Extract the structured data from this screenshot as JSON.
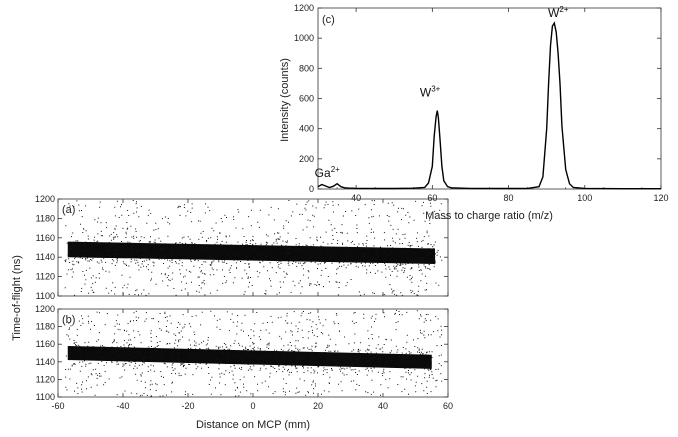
{
  "chart_data": [
    {
      "type": "line",
      "panel_label": "(c)",
      "xlabel": "Mass to charge ratio (m/z)",
      "ylabel": "Intensity (counts)",
      "xlim": [
        30,
        120
      ],
      "ylim": [
        0,
        1200
      ],
      "xticks": [
        "40",
        "60",
        "80",
        "100",
        "120"
      ],
      "yticks": [
        "0",
        "200",
        "400",
        "600",
        "800",
        "1000",
        "1200"
      ],
      "annotations": [
        {
          "base": "Ga",
          "sup": "2+",
          "x": 34,
          "y": 40
        },
        {
          "base": "W",
          "sup": "3+",
          "x": 61,
          "y": 520
        },
        {
          "base": "W",
          "sup": "2+",
          "x": 92,
          "y": 1100
        }
      ],
      "x": [
        30,
        31,
        32,
        33,
        34,
        35,
        36,
        37,
        38,
        39,
        40,
        45,
        50,
        55,
        58,
        59,
        60,
        60.5,
        61,
        61.3,
        61.6,
        62,
        62.5,
        63,
        64,
        65,
        70,
        80,
        85,
        88,
        89,
        90,
        90.5,
        91,
        91.5,
        92,
        92.5,
        93,
        93.5,
        94,
        95,
        96,
        97,
        100,
        110,
        120
      ],
      "y": [
        15,
        30,
        20,
        10,
        18,
        35,
        15,
        8,
        6,
        5,
        4,
        3,
        3,
        5,
        10,
        40,
        150,
        350,
        480,
        520,
        470,
        330,
        150,
        55,
        15,
        8,
        4,
        3,
        4,
        15,
        80,
        400,
        700,
        950,
        1080,
        1100,
        1040,
        900,
        700,
        420,
        130,
        35,
        10,
        4,
        2,
        2
      ]
    },
    {
      "type": "scatter",
      "panel_label": "(a)",
      "xlabel": "",
      "ylabel": "",
      "xlim": [
        -60,
        60
      ],
      "ylim": [
        1100,
        1200
      ],
      "yticks": [
        "1100",
        "1120",
        "1140",
        "1160",
        "1180",
        "1200"
      ],
      "band": {
        "x_range": [
          -57,
          56
        ],
        "center_at_left": 1148,
        "center_at_right": 1141,
        "half_width": 8
      }
    },
    {
      "type": "scatter",
      "panel_label": "(b)",
      "xlabel": "Distance on MCP (mm)",
      "ylabel": "Time-of-flight (ns)",
      "xlim": [
        -60,
        60
      ],
      "ylim": [
        1100,
        1200
      ],
      "xticks": [
        "-60",
        "-40",
        "-20",
        "0",
        "20",
        "40",
        "60"
      ],
      "yticks": [
        "1100",
        "1120",
        "1140",
        "1160",
        "1180",
        "1200"
      ],
      "band": {
        "x_range": [
          -57,
          55
        ],
        "center_at_left": 1150,
        "center_at_right": 1140,
        "half_width": 8
      }
    }
  ]
}
